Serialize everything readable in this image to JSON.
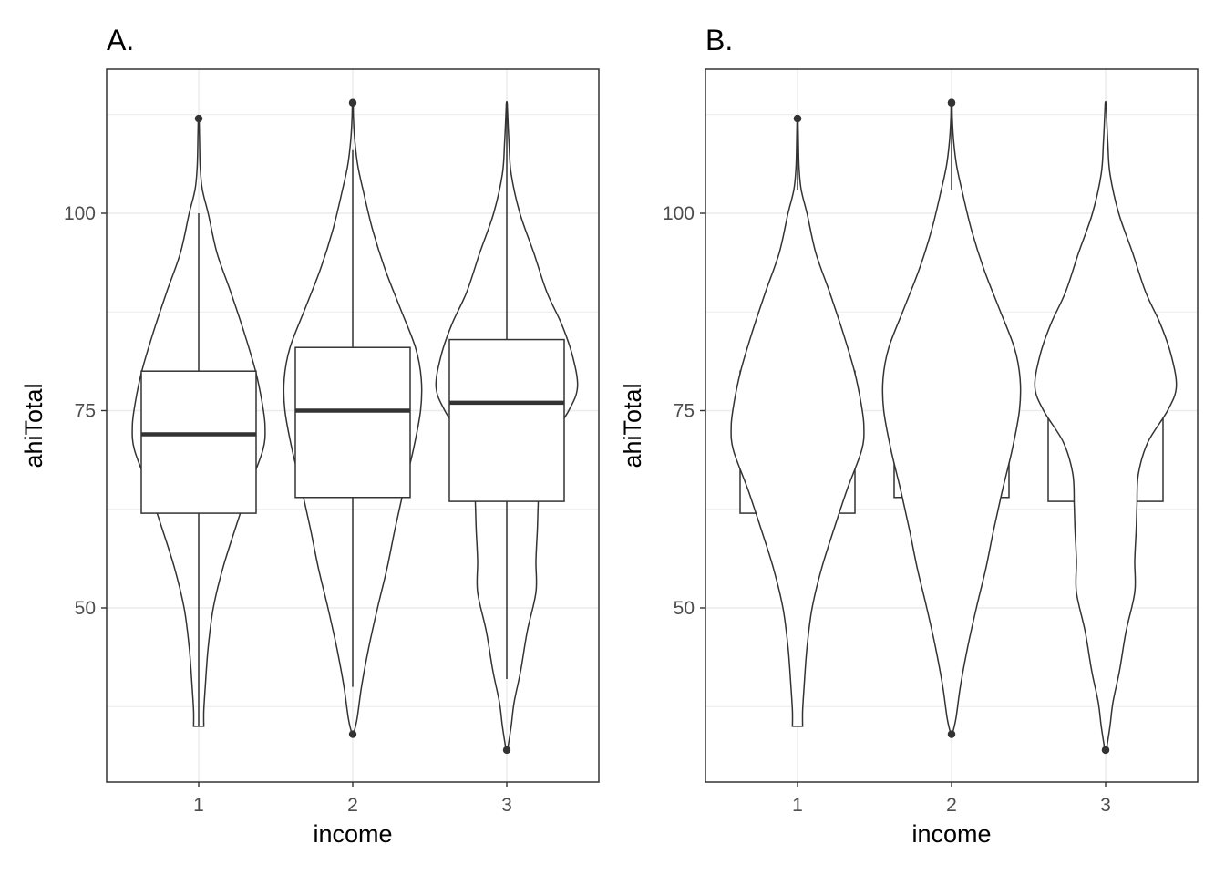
{
  "chart_data": [
    {
      "type": "violin+boxplot",
      "panel_title": "A.",
      "xlabel": "income",
      "ylabel": "ahiTotal",
      "layer_order": "box over violin",
      "categories": [
        "1",
        "2",
        "3"
      ],
      "ylim": [
        28,
        118
      ],
      "y_ticks": [
        50,
        75,
        100
      ],
      "y_tick_labels": [
        "50",
        "75",
        "100"
      ],
      "grid": true,
      "boxes": [
        {
          "category": "1",
          "lower_whisker": 35,
          "q1": 62,
          "median": 72,
          "q3": 80,
          "upper_whisker": 100,
          "outliers": [
            112
          ]
        },
        {
          "category": "2",
          "lower_whisker": 40,
          "q1": 64,
          "median": 75,
          "q3": 83,
          "upper_whisker": 108,
          "outliers": [
            114,
            34
          ]
        },
        {
          "category": "3",
          "lower_whisker": 41,
          "q1": 63.5,
          "median": 76,
          "q3": 84,
          "upper_whisker": 114,
          "outliers": [
            32
          ]
        }
      ],
      "violins": [
        {
          "category": "1",
          "min": 35,
          "max": 112,
          "profile": [
            [
              35,
              0.07
            ],
            [
              37,
              0.07
            ],
            [
              40,
              0.09
            ],
            [
              45,
              0.13
            ],
            [
              50,
              0.2
            ],
            [
              55,
              0.33
            ],
            [
              60,
              0.5
            ],
            [
              65,
              0.68
            ],
            [
              70,
              0.88
            ],
            [
              73,
              0.91
            ],
            [
              76,
              0.87
            ],
            [
              80,
              0.78
            ],
            [
              85,
              0.62
            ],
            [
              90,
              0.44
            ],
            [
              95,
              0.25
            ],
            [
              100,
              0.13
            ],
            [
              103,
              0.05
            ],
            [
              106,
              0.02
            ],
            [
              110,
              0.01
            ],
            [
              112,
              0.005
            ]
          ]
        },
        {
          "category": "2",
          "min": 34,
          "max": 114,
          "profile": [
            [
              34,
              0.01
            ],
            [
              36,
              0.06
            ],
            [
              40,
              0.12
            ],
            [
              45,
              0.22
            ],
            [
              50,
              0.34
            ],
            [
              55,
              0.47
            ],
            [
              60,
              0.58
            ],
            [
              65,
              0.7
            ],
            [
              70,
              0.83
            ],
            [
              75,
              0.93
            ],
            [
              79,
              0.94
            ],
            [
              83,
              0.86
            ],
            [
              88,
              0.65
            ],
            [
              93,
              0.44
            ],
            [
              98,
              0.27
            ],
            [
              103,
              0.14
            ],
            [
              106,
              0.07
            ],
            [
              109,
              0.03
            ],
            [
              112,
              0.01
            ],
            [
              114,
              0.005
            ]
          ]
        },
        {
          "category": "3",
          "min": 32,
          "max": 114,
          "profile": [
            [
              32,
              0.01
            ],
            [
              35,
              0.06
            ],
            [
              38,
              0.1
            ],
            [
              42,
              0.19
            ],
            [
              47,
              0.28
            ],
            [
              52,
              0.4
            ],
            [
              56,
              0.4
            ],
            [
              60,
              0.42
            ],
            [
              63,
              0.43
            ],
            [
              67,
              0.45
            ],
            [
              71,
              0.58
            ],
            [
              75,
              0.85
            ],
            [
              78,
              0.97
            ],
            [
              82,
              0.9
            ],
            [
              86,
              0.75
            ],
            [
              90,
              0.55
            ],
            [
              95,
              0.37
            ],
            [
              100,
              0.18
            ],
            [
              105,
              0.06
            ],
            [
              109,
              0.03
            ],
            [
              113,
              0.01
            ],
            [
              114,
              0.005
            ]
          ]
        }
      ]
    },
    {
      "type": "boxplot+violin",
      "panel_title": "B.",
      "xlabel": "income",
      "ylabel": "ahiTotal",
      "layer_order": "violin over box",
      "categories": [
        "1",
        "2",
        "3"
      ],
      "ylim": [
        28,
        118
      ],
      "y_ticks": [
        50,
        75,
        100
      ],
      "y_tick_labels": [
        "50",
        "75",
        "100"
      ],
      "grid": true,
      "boxes": [
        {
          "category": "1",
          "lower_whisker": 35,
          "q1": 62,
          "median": 72,
          "q3": 80,
          "upper_whisker": 100,
          "outliers": [
            112
          ]
        },
        {
          "category": "2",
          "lower_whisker": 40,
          "q1": 64,
          "median": 75,
          "q3": 83,
          "upper_whisker": 108,
          "outliers": [
            114,
            34
          ]
        },
        {
          "category": "3",
          "lower_whisker": 41,
          "q1": 63.5,
          "median": 76,
          "q3": 84,
          "upper_whisker": 114,
          "outliers": [
            32
          ]
        }
      ],
      "violins": [
        {
          "category": "1",
          "min": 35,
          "max": 112,
          "profile": [
            [
              35,
              0.07
            ],
            [
              37,
              0.07
            ],
            [
              40,
              0.09
            ],
            [
              45,
              0.13
            ],
            [
              50,
              0.2
            ],
            [
              55,
              0.33
            ],
            [
              60,
              0.5
            ],
            [
              65,
              0.68
            ],
            [
              70,
              0.88
            ],
            [
              73,
              0.91
            ],
            [
              76,
              0.87
            ],
            [
              80,
              0.78
            ],
            [
              85,
              0.62
            ],
            [
              90,
              0.44
            ],
            [
              95,
              0.25
            ],
            [
              100,
              0.13
            ],
            [
              103,
              0.05
            ],
            [
              106,
              0.02
            ],
            [
              110,
              0.01
            ],
            [
              112,
              0.005
            ]
          ]
        },
        {
          "category": "2",
          "min": 34,
          "max": 114,
          "profile": [
            [
              34,
              0.01
            ],
            [
              36,
              0.06
            ],
            [
              40,
              0.12
            ],
            [
              45,
              0.22
            ],
            [
              50,
              0.34
            ],
            [
              55,
              0.47
            ],
            [
              60,
              0.58
            ],
            [
              65,
              0.7
            ],
            [
              70,
              0.83
            ],
            [
              75,
              0.93
            ],
            [
              79,
              0.94
            ],
            [
              83,
              0.86
            ],
            [
              88,
              0.65
            ],
            [
              93,
              0.44
            ],
            [
              98,
              0.27
            ],
            [
              103,
              0.14
            ],
            [
              106,
              0.07
            ],
            [
              109,
              0.03
            ],
            [
              112,
              0.01
            ],
            [
              114,
              0.005
            ]
          ]
        },
        {
          "category": "3",
          "min": 32,
          "max": 114,
          "profile": [
            [
              32,
              0.01
            ],
            [
              35,
              0.06
            ],
            [
              38,
              0.1
            ],
            [
              42,
              0.19
            ],
            [
              47,
              0.28
            ],
            [
              52,
              0.4
            ],
            [
              56,
              0.4
            ],
            [
              60,
              0.42
            ],
            [
              63,
              0.43
            ],
            [
              67,
              0.45
            ],
            [
              71,
              0.58
            ],
            [
              75,
              0.85
            ],
            [
              78,
              0.97
            ],
            [
              82,
              0.9
            ],
            [
              86,
              0.75
            ],
            [
              90,
              0.55
            ],
            [
              95,
              0.37
            ],
            [
              100,
              0.18
            ],
            [
              105,
              0.06
            ],
            [
              109,
              0.03
            ],
            [
              113,
              0.01
            ],
            [
              114,
              0.005
            ]
          ]
        }
      ]
    }
  ]
}
